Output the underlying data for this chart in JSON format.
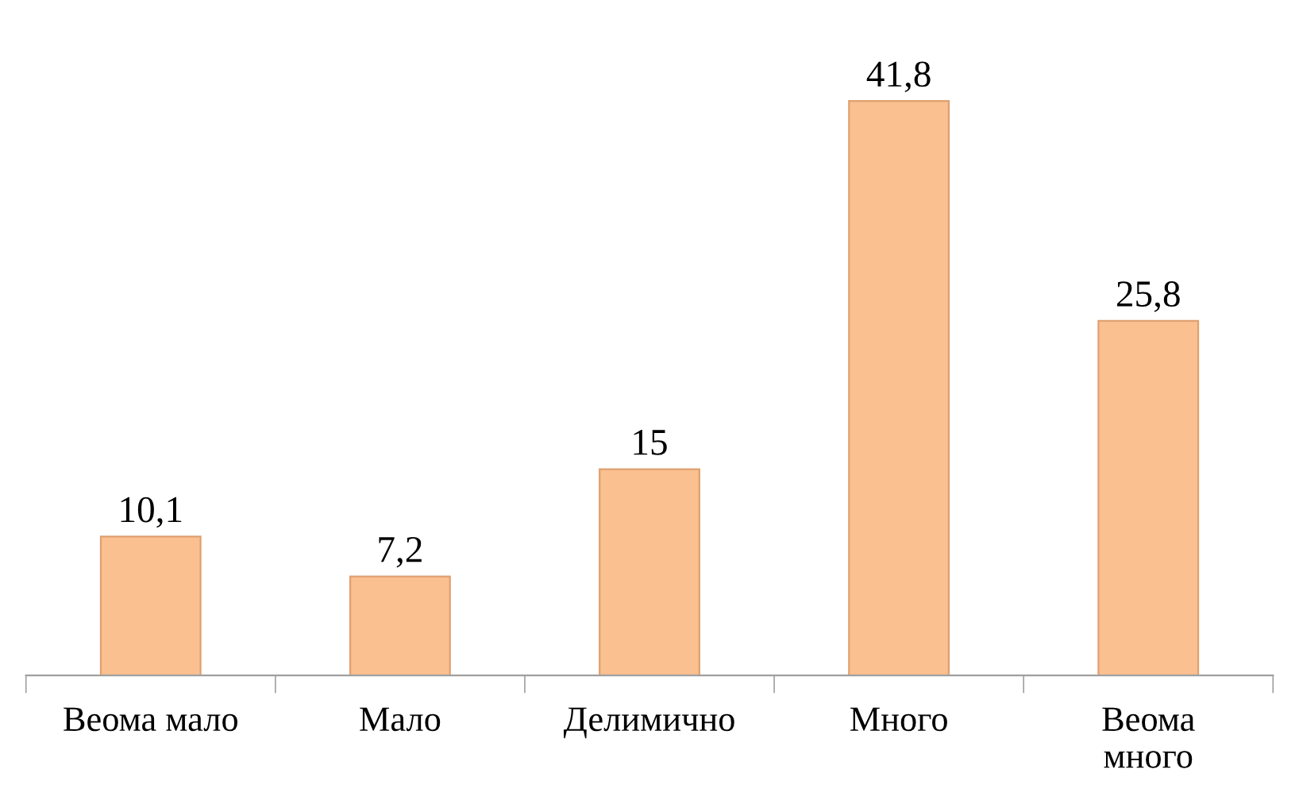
{
  "chart_data": {
    "type": "bar",
    "categories": [
      "Веома мало",
      "Мало",
      "Делимично",
      "Много",
      "Веома много"
    ],
    "values": [
      10.1,
      7.2,
      15,
      41.8,
      25.8
    ],
    "color": "#fac090",
    "value_labels": [
      "10,1",
      "7,2",
      "15",
      "41,8",
      "25,8"
    ],
    "grid": false,
    "legend": false
  }
}
